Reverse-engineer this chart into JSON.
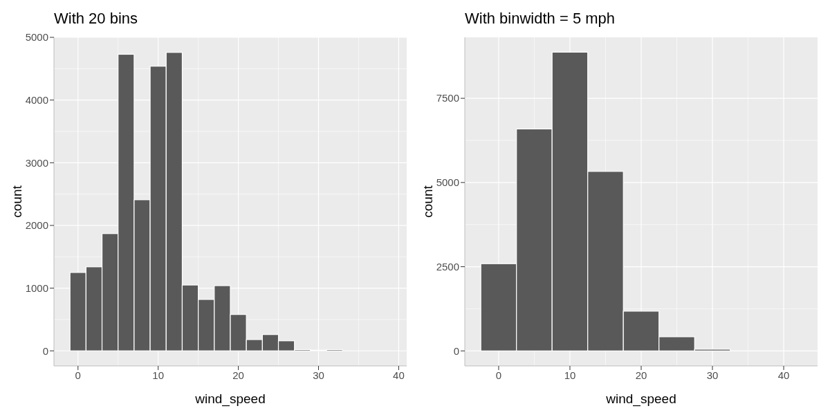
{
  "chart_data": [
    {
      "type": "histogram",
      "title": "With 20 bins",
      "xlabel": "wind_speed",
      "ylabel": "count",
      "color": "#595959",
      "bins": [
        -1,
        1,
        3,
        5,
        7,
        9,
        11,
        13,
        15,
        17,
        19,
        21,
        23,
        25,
        27,
        29,
        31,
        33,
        35,
        37,
        39
      ],
      "values": [
        1250,
        1340,
        1870,
        4730,
        2410,
        4540,
        4760,
        1050,
        820,
        1040,
        580,
        180,
        260,
        160,
        20,
        10,
        20,
        0,
        0,
        0
      ],
      "xlim": [
        -3,
        41
      ],
      "xticks": [
        0,
        10,
        20,
        30,
        40
      ],
      "ylim": [
        -240,
        5000
      ],
      "yticks": [
        0,
        1000,
        2000,
        3000,
        4000,
        5000
      ],
      "grid": true
    },
    {
      "type": "histogram",
      "title": "With binwidth = 5 mph",
      "xlabel": "wind_speed",
      "ylabel": "count",
      "color": "#595959",
      "bins": [
        -2.5,
        2.5,
        7.5,
        12.5,
        17.5,
        22.5,
        27.5,
        32.5,
        37.5,
        42.5
      ],
      "values": [
        2590,
        6590,
        8870,
        5330,
        1180,
        420,
        50,
        null,
        0
      ],
      "xlim": [
        -4.75,
        44.75
      ],
      "xticks": [
        0,
        10,
        20,
        30,
        40
      ],
      "ylim": [
        -445,
        9310
      ],
      "yticks": [
        0,
        2500,
        5000,
        7500
      ],
      "grid": true
    }
  ]
}
